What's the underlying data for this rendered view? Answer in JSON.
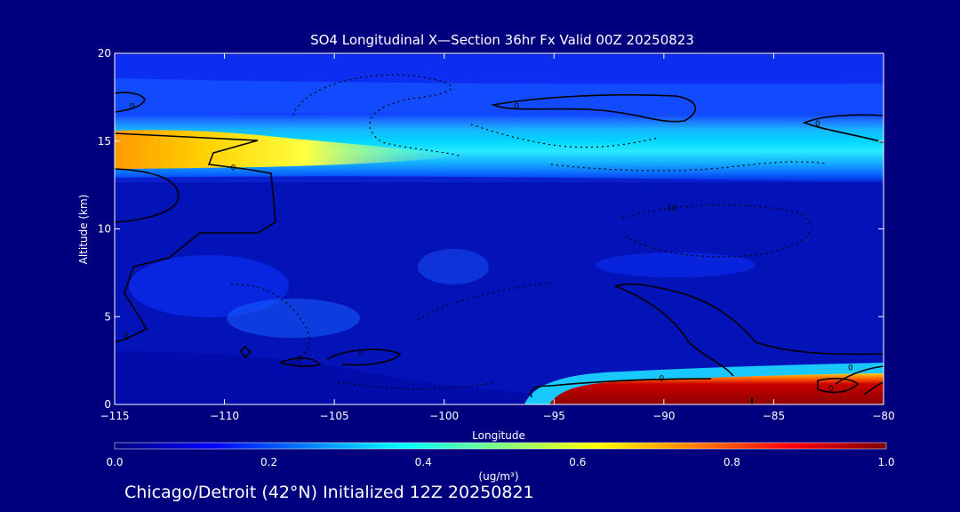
{
  "chart_data": {
    "type": "heatmap",
    "title": "SO4 Longitudinal X—Section 36hr  Fx Valid 00Z 20250823",
    "xlabel": "Longitude",
    "ylabel": "Altitude (km)",
    "xlim": [
      -115,
      -80
    ],
    "ylim": [
      0,
      20
    ],
    "x_ticks": [
      -115,
      -110,
      -105,
      -100,
      -95,
      -90,
      -85,
      -80
    ],
    "x_tick_labels": [
      "−115",
      "−110",
      "−105",
      "−100",
      "−95",
      "−90",
      "−85",
      "−80"
    ],
    "y_ticks": [
      0,
      5,
      10,
      15,
      20
    ],
    "y_tick_labels": [
      "0",
      "5",
      "10",
      "15",
      "20"
    ],
    "colorbar": {
      "min": 0.0,
      "max": 1.0,
      "ticks": [
        "0.0",
        "0.2",
        "0.4",
        "0.6",
        "0.8",
        "1.0"
      ],
      "tick_values": [
        0.0,
        0.2,
        0.4,
        0.6,
        0.8,
        1.0
      ],
      "label": "(ug/m³)"
    },
    "field_bands": [
      {
        "name": "upper-layer",
        "lon": [
          -115,
          -80
        ],
        "alt": [
          16.5,
          19.5
        ],
        "value": 0.22
      },
      {
        "name": "tropopause-layer",
        "lon": [
          -115,
          -80
        ],
        "alt": [
          13.5,
          16.5
        ],
        "value": 0.32
      },
      {
        "name": "tropopause-max-west",
        "lon": [
          -115,
          -105
        ],
        "alt": [
          14.0,
          15.4
        ],
        "value": 0.62
      },
      {
        "name": "surface-max-east",
        "lon": [
          -94,
          -80
        ],
        "alt": [
          0.0,
          1.8
        ],
        "value": 1.0
      },
      {
        "name": "surface-edge-east",
        "lon": [
          -95,
          -80
        ],
        "alt": [
          1.6,
          2.3
        ],
        "value": 0.35
      }
    ],
    "contour_labels": [
      {
        "text": "0",
        "lon": -114.2,
        "alt": 17.0
      },
      {
        "text": "0",
        "lon": -109.6,
        "alt": 13.5
      },
      {
        "text": "0",
        "lon": -96.7,
        "alt": 17.0
      },
      {
        "text": "0",
        "lon": -83.0,
        "alt": 16.0
      },
      {
        "text": "0",
        "lon": -114.5,
        "alt": 3.9
      },
      {
        "text": "0",
        "lon": -106.6,
        "alt": 2.6
      },
      {
        "text": "0",
        "lon": -103.8,
        "alt": 3.0
      },
      {
        "text": "0",
        "lon": -90.1,
        "alt": 1.5
      },
      {
        "text": "0",
        "lon": -81.5,
        "alt": 2.1
      },
      {
        "text": "0",
        "lon": -82.4,
        "alt": 0.9
      },
      {
        "text": "-10",
        "lon": -89.7,
        "alt": 11.2
      }
    ]
  },
  "footer": "Chicago/Detroit (42°N) Initialized 12Z 20250821",
  "colors": {
    "background": "#00007f",
    "colormap": [
      "#00007f",
      "#0000ff",
      "#00ffff",
      "#ffff00",
      "#ff0000",
      "#7f0000"
    ]
  }
}
